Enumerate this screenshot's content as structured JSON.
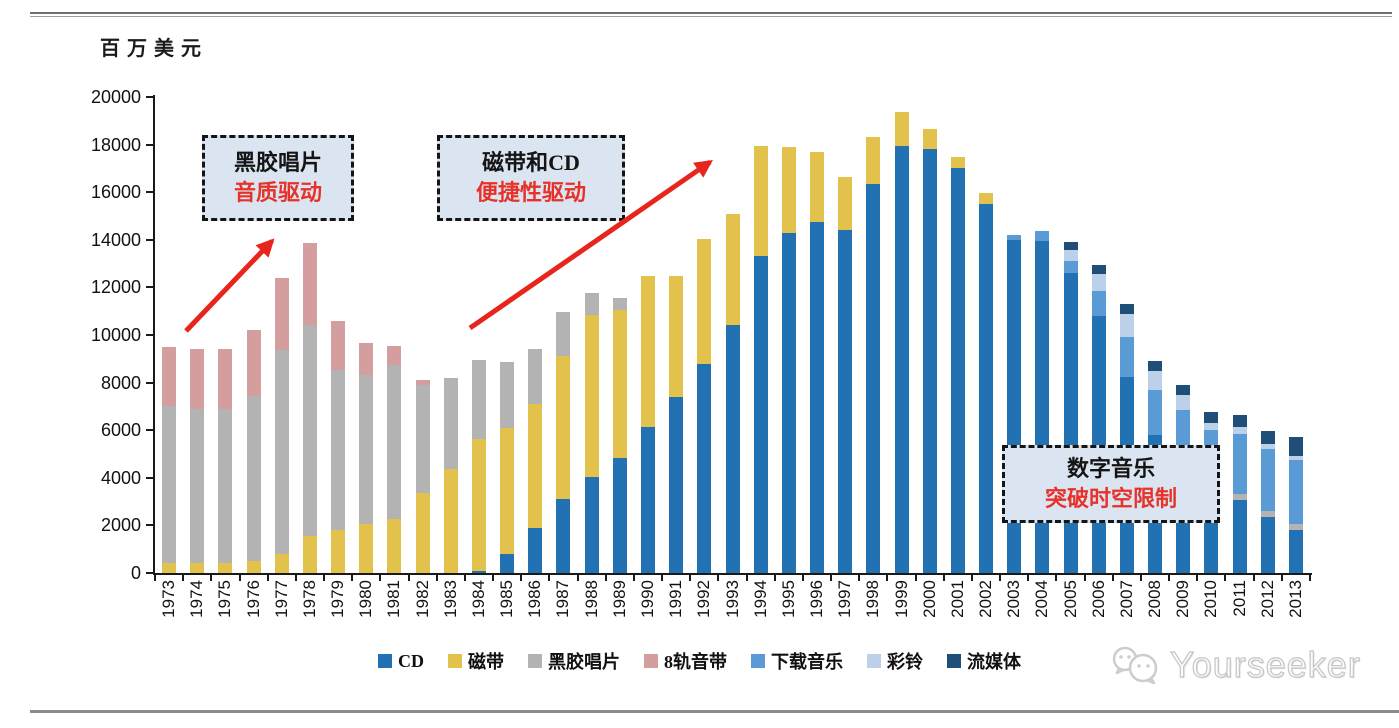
{
  "page": {
    "unit_label": "百万美元"
  },
  "annotations": [
    {
      "id": "vinyl-era",
      "line1": "黑胶唱片",
      "line2": "音质驱动"
    },
    {
      "id": "cd-era",
      "line1": "磁带和CD",
      "line2": "便捷性驱动"
    },
    {
      "id": "digital-era",
      "line1": "数字音乐",
      "line2": "突破时空限制"
    }
  ],
  "watermark": {
    "brand": "Yourseeker",
    "icon": "wechat-icon"
  },
  "colors": {
    "annotation_bg": "#dbe5f1",
    "annotation_red": "#e63229",
    "arrow_red": "#e8251d",
    "axis_black": "#1a1a1a",
    "rule_gray": "#8c8c8c"
  },
  "chart_data": {
    "type": "bar",
    "stacked": true,
    "title": "",
    "ylabel": "百万美元",
    "ylim": [
      0,
      20000
    ],
    "ytick_step": 2000,
    "grid": false,
    "legend_position": "bottom",
    "categories": [
      "1973",
      "1974",
      "1975",
      "1976",
      "1977",
      "1978",
      "1979",
      "1980",
      "1981",
      "1982",
      "1983",
      "1984",
      "1985",
      "1986",
      "1987",
      "1988",
      "1989",
      "1990",
      "1991",
      "1992",
      "1993",
      "1994",
      "1995",
      "1996",
      "1997",
      "1998",
      "1999",
      "2000",
      "2001",
      "2002",
      "2003",
      "2004",
      "2005",
      "2006",
      "2007",
      "2008",
      "2009",
      "2010",
      "2011",
      "2012",
      "2013"
    ],
    "series": [
      {
        "name": "CD",
        "color": "#2271b3",
        "values": [
          0,
          0,
          0,
          0,
          0,
          0,
          0,
          0,
          0,
          0,
          0,
          100,
          800,
          1900,
          3100,
          4050,
          4850,
          6150,
          7400,
          8800,
          10400,
          13300,
          14300,
          14750,
          14400,
          16350,
          17950,
          17800,
          17000,
          15500,
          14000,
          13950,
          12600,
          10800,
          8250,
          5800,
          4400,
          3400,
          3050,
          2350,
          1800
        ]
      },
      {
        "name": "磁带",
        "color": "#e2c24d",
        "values": [
          400,
          400,
          400,
          500,
          800,
          1550,
          1800,
          2050,
          2250,
          3350,
          4350,
          5550,
          5300,
          5200,
          6000,
          6800,
          6200,
          6350,
          5100,
          5250,
          4700,
          4650,
          3600,
          2950,
          2250,
          1950,
          1400,
          850,
          500,
          450,
          0,
          0,
          0,
          0,
          0,
          0,
          0,
          0,
          0,
          0,
          0
        ]
      },
      {
        "name": "黑胶唱片",
        "color": "#b3b3b3",
        "values": [
          6600,
          6500,
          6500,
          6950,
          8550,
          8850,
          6750,
          6250,
          6500,
          4550,
          3850,
          3300,
          2750,
          2300,
          1850,
          900,
          500,
          0,
          0,
          0,
          0,
          0,
          0,
          0,
          0,
          0,
          0,
          0,
          0,
          0,
          0,
          0,
          0,
          0,
          0,
          0,
          0,
          200,
          250,
          250,
          250
        ]
      },
      {
        "name": "8轨音带",
        "color": "#d59e9e",
        "values": [
          2500,
          2500,
          2500,
          2750,
          3050,
          3450,
          2050,
          1350,
          800,
          200,
          0,
          0,
          0,
          0,
          0,
          0,
          0,
          0,
          0,
          0,
          0,
          0,
          0,
          0,
          0,
          0,
          0,
          0,
          0,
          0,
          0,
          0,
          0,
          0,
          0,
          0,
          0,
          0,
          0,
          0,
          0
        ]
      },
      {
        "name": "下载音乐",
        "color": "#5b9bd5",
        "values": [
          0,
          0,
          0,
          0,
          0,
          0,
          0,
          0,
          0,
          0,
          0,
          0,
          0,
          0,
          0,
          0,
          0,
          0,
          0,
          0,
          0,
          0,
          0,
          0,
          0,
          0,
          0,
          0,
          0,
          0,
          200,
          400,
          500,
          1050,
          1650,
          1900,
          2450,
          2400,
          2550,
          2600,
          2700
        ]
      },
      {
        "name": "彩铃",
        "color": "#bdd0e9",
        "values": [
          0,
          0,
          0,
          0,
          0,
          0,
          0,
          0,
          0,
          0,
          0,
          0,
          0,
          0,
          0,
          0,
          0,
          0,
          0,
          0,
          0,
          0,
          0,
          0,
          0,
          0,
          0,
          0,
          0,
          0,
          0,
          0,
          480,
          700,
          1000,
          800,
          630,
          300,
          280,
          200,
          150
        ]
      },
      {
        "name": "流媒体",
        "color": "#1f4e79",
        "values": [
          0,
          0,
          0,
          0,
          0,
          0,
          0,
          0,
          0,
          0,
          0,
          0,
          0,
          0,
          0,
          0,
          0,
          0,
          0,
          0,
          0,
          0,
          0,
          0,
          0,
          0,
          0,
          0,
          0,
          0,
          0,
          0,
          320,
          400,
          400,
          400,
          420,
          450,
          520,
          550,
          800
        ]
      }
    ]
  }
}
